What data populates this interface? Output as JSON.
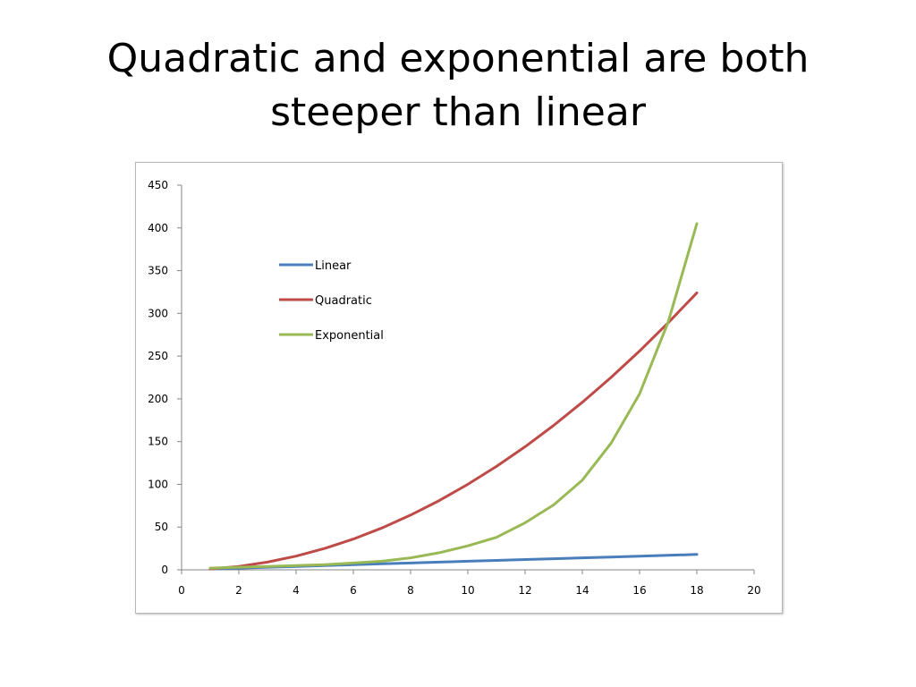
{
  "slide": {
    "title": "Quadratic and exponential are both steeper than linear"
  },
  "chart_data": {
    "type": "line",
    "title": "",
    "xlabel": "",
    "ylabel": "",
    "x": [
      1,
      2,
      3,
      4,
      5,
      6,
      7,
      8,
      9,
      10,
      11,
      12,
      13,
      14,
      15,
      16,
      17,
      18
    ],
    "xlim": [
      0,
      20
    ],
    "ylim": [
      0,
      450
    ],
    "xticks": [
      0,
      2,
      4,
      6,
      8,
      10,
      12,
      14,
      16,
      18,
      20
    ],
    "yticks": [
      0,
      50,
      100,
      150,
      200,
      250,
      300,
      350,
      400,
      450
    ],
    "grid": false,
    "legend_position": "upper-left",
    "series": [
      {
        "name": "Linear",
        "color": "#4a7ebb",
        "values": [
          1,
          2,
          3,
          4,
          5,
          6,
          7,
          8,
          9,
          10,
          11,
          12,
          13,
          14,
          15,
          16,
          17,
          18
        ]
      },
      {
        "name": "Quadratic",
        "color": "#be4b48",
        "values": [
          1,
          4,
          9,
          16,
          25,
          36,
          49,
          64,
          81,
          100,
          121,
          144,
          169,
          196,
          225,
          256,
          289,
          324
        ]
      },
      {
        "name": "Exponential",
        "color": "#98b954",
        "values": [
          2,
          3,
          4,
          5,
          6,
          8,
          10,
          14,
          20,
          28,
          38,
          55,
          76,
          105,
          148,
          206,
          290,
          405
        ]
      }
    ]
  }
}
